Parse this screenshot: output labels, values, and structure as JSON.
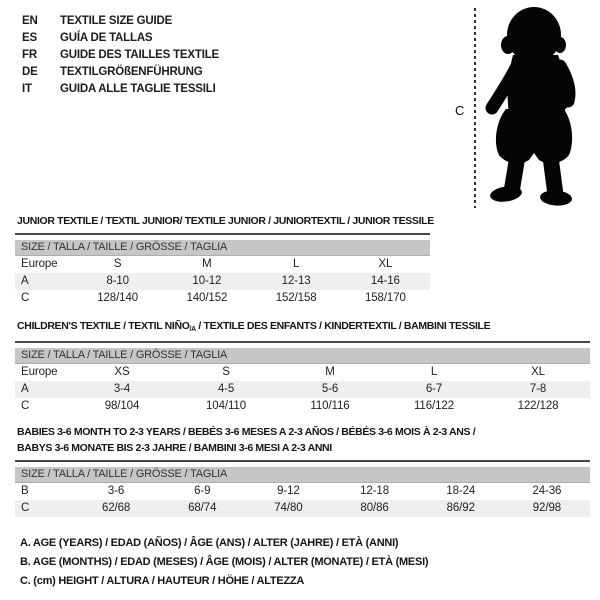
{
  "languages": [
    {
      "code": "EN",
      "title": "TEXTILE SIZE GUIDE"
    },
    {
      "code": "ES",
      "title": "GUÍA DE TALLAS"
    },
    {
      "code": "FR",
      "title": "GUIDE DES TAILLES TEXTILE"
    },
    {
      "code": "DE",
      "title": "TEXTILGRÖßENFÜHRUNG"
    },
    {
      "code": "IT",
      "title": "GUIDA ALLE TAGLIE TESSILI"
    }
  ],
  "figure": {
    "measure_label": "C",
    "silhouette": "baby-toddler-standing"
  },
  "tables": [
    {
      "title_lines": [
        [
          {
            "t": "JUNIOR TEXTILE / TEXTIL JUNIOR/ TEXTILE JUNIOR / JUNIORTEXTIL / JUNIOR TESSILE"
          }
        ]
      ],
      "size_header": "SIZE / TALLA / TAILLE / GRÖSSE / TAGLIA",
      "rows": [
        {
          "label": "Europe",
          "cells": [
            "S",
            "M",
            "L",
            "XL"
          ]
        },
        {
          "label": "A",
          "cells": [
            "8-10",
            "10-12",
            "12-13",
            "14-16"
          ]
        },
        {
          "label": "C",
          "cells": [
            "128/140",
            "140/152",
            "152/158",
            "158/170"
          ]
        }
      ]
    },
    {
      "title_lines": [
        [
          {
            "t": "CHILDREN'S TEXTILE / TEXTIL NIÑO"
          },
          {
            "t": "/A",
            "sub": true
          },
          {
            "t": " / TEXTILE DES ENFANTS / KINDERTEXTIL / BAMBINI TESSILE"
          }
        ]
      ],
      "size_header": "SIZE / TALLA / TAILLE / GRÖSSE / TAGLIA",
      "rows": [
        {
          "label": "Europe",
          "cells": [
            "XS",
            "S",
            "M",
            "L",
            "XL"
          ]
        },
        {
          "label": "A",
          "cells": [
            "3-4",
            "4-5",
            "5-6",
            "6-7",
            "7-8"
          ]
        },
        {
          "label": "C",
          "cells": [
            "98/104",
            "104/110",
            "110/116",
            "116/122",
            "122/128"
          ]
        }
      ]
    },
    {
      "title_lines": [
        [
          {
            "t": "BABIES 3-6 MONTH TO 2-3 YEARS / BEBÉS 3-6 MESES A 2-3 AÑOS / BÉBÉS 3-6 MOIS À 2-3 ANS /"
          }
        ],
        [
          {
            "t": "BABYS 3-6 MONATE BIS 2-3 JAHRE / BAMBINI 3-6 MESI A 2-3 ANNI"
          }
        ]
      ],
      "size_header": "SIZE / TALLA / TAILLE / GRÖSSE / TAGLIA",
      "rows": [
        {
          "label": "B",
          "cells": [
            "3-6",
            "6-9",
            "9-12",
            "12-18",
            "18-24",
            "24-36"
          ]
        },
        {
          "label": "C",
          "cells": [
            "62/68",
            "68/74",
            "74/80",
            "80/86",
            "86/92",
            "92/98"
          ]
        }
      ]
    }
  ],
  "legend": [
    "A. AGE (YEARS) / EDAD (AÑOS) / ÂGE (ANS) / ALTER (JAHRE) / ETÀ (ANNI)",
    "B. AGE (MONTHS) / EDAD (MESES) / ÂGE (MOIS) / ALTER (MONATE) / ETÀ (MESI)",
    "C. (cm) HEIGHT / ALTURA / HAUTEUR / HÖHE / ALTEZZA"
  ],
  "colors": {
    "table_header_bg": "#c6c6c6",
    "stripe_row_bg": "#efefef",
    "rule": "#4a4a4a",
    "silhouette": "#050505",
    "text": "#1c1c1c"
  }
}
